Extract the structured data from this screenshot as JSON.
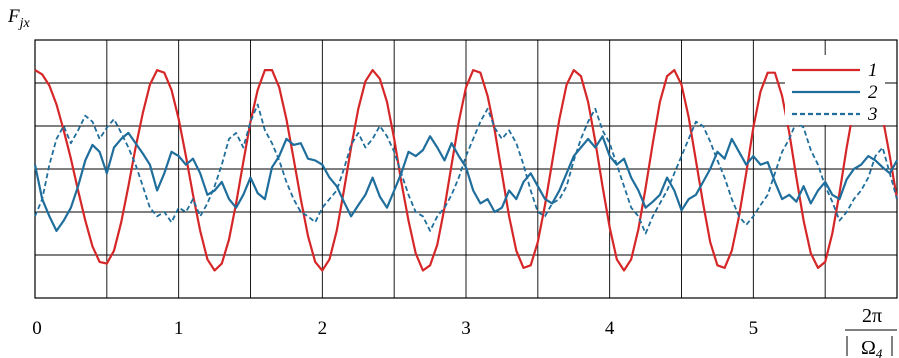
{
  "chart_data": {
    "type": "line",
    "title": "",
    "xlabel": "2π / |Ω_4|",
    "xlabel_parts": {
      "numerator": "2π",
      "denominator": "Ω",
      "denominator_subscript": "4"
    },
    "ylabel": "F",
    "ylabel_subscript": "jx",
    "xlim": [
      0,
      6
    ],
    "ylim": [
      -1.5,
      1.5
    ],
    "x_ticks": [
      "0",
      "1",
      "2",
      "3",
      "4",
      "5"
    ],
    "x_tick_values": [
      0,
      1,
      2,
      3,
      4,
      5
    ],
    "grid": true,
    "legend_position": "top-right",
    "series": [
      {
        "name": "1",
        "color": "#d62728",
        "dash": "solid",
        "x": [
          0,
          0.05,
          0.1,
          0.15,
          0.2,
          0.25,
          0.3,
          0.35,
          0.4,
          0.45,
          0.5,
          0.55,
          0.6,
          0.65,
          0.7,
          0.75,
          0.8,
          0.85,
          0.9,
          0.95,
          1.0,
          1.05,
          1.1,
          1.15,
          1.2,
          1.25,
          1.3,
          1.35,
          1.4,
          1.45,
          1.5,
          1.55,
          1.6,
          1.65,
          1.7,
          1.75,
          1.8,
          1.85,
          1.9,
          1.95,
          2.0,
          2.05,
          2.1,
          2.15,
          2.2,
          2.25,
          2.3,
          2.35,
          2.4,
          2.45,
          2.5,
          2.55,
          2.6,
          2.65,
          2.7,
          2.75,
          2.8,
          2.85,
          2.9,
          2.95,
          3.0,
          3.05,
          3.1,
          3.15,
          3.2,
          3.25,
          3.3,
          3.35,
          3.4,
          3.45,
          3.5,
          3.55,
          3.6,
          3.65,
          3.7,
          3.75,
          3.8,
          3.85,
          3.9,
          3.95,
          4.0,
          4.05,
          4.1,
          4.15,
          4.2,
          4.25,
          4.3,
          4.35,
          4.4,
          4.45,
          4.5,
          4.55,
          4.6,
          4.65,
          4.7,
          4.75,
          4.8,
          4.85,
          4.9,
          4.95,
          5.0,
          5.05,
          5.1,
          5.15,
          5.2,
          5.25,
          5.3,
          5.35,
          5.4,
          5.45,
          5.5,
          5.55,
          5.6,
          5.65,
          5.7,
          5.75,
          5.8,
          5.85,
          5.9,
          5.95,
          6.0
        ],
        "y": [
          1.15,
          1.1,
          0.97,
          0.75,
          0.45,
          0.12,
          -0.25,
          -0.6,
          -0.9,
          -1.08,
          -1.1,
          -0.95,
          -0.62,
          -0.2,
          0.25,
          0.65,
          0.98,
          1.15,
          1.12,
          0.92,
          0.58,
          0.15,
          -0.3,
          -0.72,
          -1.05,
          -1.18,
          -1.1,
          -0.82,
          -0.4,
          0.08,
          0.55,
          0.92,
          1.15,
          1.15,
          0.95,
          0.58,
          0.12,
          -0.35,
          -0.78,
          -1.08,
          -1.18,
          -1.05,
          -0.72,
          -0.25,
          0.25,
          0.7,
          1.02,
          1.15,
          1.05,
          0.78,
          0.35,
          -0.15,
          -0.6,
          -0.98,
          -1.18,
          -1.12,
          -0.88,
          -0.45,
          0.05,
          0.55,
          0.95,
          1.15,
          1.12,
          0.85,
          0.45,
          -0.05,
          -0.55,
          -0.95,
          -1.15,
          -1.12,
          -0.85,
          -0.42,
          0.08,
          0.58,
          0.98,
          1.15,
          1.08,
          0.78,
          0.32,
          -0.2,
          -0.68,
          -1.05,
          -1.18,
          -1.05,
          -0.7,
          -0.22,
          0.3,
          0.78,
          1.08,
          1.15,
          0.98,
          0.6,
          0.1,
          -0.4,
          -0.85,
          -1.12,
          -1.15,
          -0.95,
          -0.55,
          -0.05,
          0.48,
          0.9,
          1.12,
          1.12,
          0.85,
          0.42,
          -0.1,
          -0.6,
          -0.98,
          -1.15,
          -1.08,
          -0.75,
          -0.28,
          0.25,
          0.72,
          1.05,
          1.15,
          0.98,
          0.6,
          0.15,
          -0.35
        ]
      },
      {
        "name": "2",
        "color": "#1f6e9c",
        "dash": "solid",
        "x": [
          0,
          0.05,
          0.1,
          0.15,
          0.2,
          0.25,
          0.3,
          0.35,
          0.4,
          0.45,
          0.5,
          0.55,
          0.6,
          0.65,
          0.7,
          0.75,
          0.8,
          0.85,
          0.9,
          0.95,
          1.0,
          1.05,
          1.1,
          1.15,
          1.2,
          1.25,
          1.3,
          1.35,
          1.4,
          1.45,
          1.5,
          1.55,
          1.6,
          1.65,
          1.7,
          1.75,
          1.8,
          1.85,
          1.9,
          1.95,
          2.0,
          2.05,
          2.1,
          2.15,
          2.2,
          2.25,
          2.3,
          2.35,
          2.4,
          2.45,
          2.5,
          2.55,
          2.6,
          2.65,
          2.7,
          2.75,
          2.8,
          2.85,
          2.9,
          2.95,
          3.0,
          3.05,
          3.1,
          3.15,
          3.2,
          3.25,
          3.3,
          3.35,
          3.4,
          3.45,
          3.5,
          3.55,
          3.6,
          3.65,
          3.7,
          3.75,
          3.8,
          3.85,
          3.9,
          3.95,
          4.0,
          4.05,
          4.1,
          4.15,
          4.2,
          4.25,
          4.3,
          4.35,
          4.4,
          4.45,
          4.5,
          4.55,
          4.6,
          4.65,
          4.7,
          4.75,
          4.8,
          4.85,
          4.9,
          4.95,
          5.0,
          5.05,
          5.1,
          5.15,
          5.2,
          5.25,
          5.3,
          5.35,
          5.4,
          5.45,
          5.5,
          5.55,
          5.6,
          5.65,
          5.7,
          5.75,
          5.8,
          5.85,
          5.9,
          5.95,
          6.0
        ],
        "y": [
          0.05,
          -0.35,
          -0.55,
          -0.72,
          -0.6,
          -0.45,
          -0.2,
          0.1,
          0.28,
          0.2,
          -0.05,
          0.25,
          0.35,
          0.42,
          0.3,
          0.18,
          0.05,
          -0.25,
          -0.05,
          0.2,
          0.15,
          0.05,
          0.12,
          -0.05,
          -0.3,
          -0.25,
          -0.15,
          -0.35,
          -0.45,
          -0.3,
          -0.1,
          -0.28,
          -0.35,
          0.02,
          0.15,
          0.35,
          0.28,
          0.3,
          0.12,
          0.1,
          0.05,
          -0.1,
          -0.2,
          -0.38,
          -0.55,
          -0.42,
          -0.3,
          -0.1,
          -0.32,
          -0.45,
          -0.25,
          -0.05,
          0.2,
          0.15,
          0.22,
          0.38,
          0.25,
          0.1,
          0.3,
          0.15,
          0.02,
          -0.25,
          -0.4,
          -0.35,
          -0.5,
          -0.45,
          -0.25,
          -0.35,
          -0.15,
          -0.05,
          -0.2,
          -0.35,
          -0.4,
          -0.25,
          -0.05,
          0.15,
          0.25,
          0.35,
          0.25,
          0.38,
          0.15,
          0.05,
          0.12,
          -0.1,
          -0.25,
          -0.45,
          -0.38,
          -0.3,
          -0.1,
          -0.25,
          -0.48,
          -0.35,
          -0.3,
          -0.15,
          0.0,
          0.2,
          0.12,
          0.35,
          0.2,
          0.05,
          0.15,
          0.05,
          0.08,
          -0.15,
          -0.35,
          -0.3,
          -0.38,
          -0.2,
          -0.4,
          -0.25,
          -0.15,
          -0.3,
          -0.35,
          -0.12,
          0.0,
          0.05,
          0.15,
          0.1,
          0.02,
          -0.05,
          0.1
        ]
      },
      {
        "name": "3",
        "color": "#1f6e9c",
        "dash": "dashed",
        "x": [
          0,
          0.05,
          0.1,
          0.15,
          0.2,
          0.25,
          0.3,
          0.35,
          0.4,
          0.45,
          0.5,
          0.55,
          0.6,
          0.65,
          0.7,
          0.75,
          0.8,
          0.85,
          0.9,
          0.95,
          1.0,
          1.05,
          1.1,
          1.15,
          1.2,
          1.25,
          1.3,
          1.35,
          1.4,
          1.45,
          1.5,
          1.55,
          1.6,
          1.65,
          1.7,
          1.75,
          1.8,
          1.85,
          1.9,
          1.95,
          2.0,
          2.05,
          2.1,
          2.15,
          2.2,
          2.25,
          2.3,
          2.35,
          2.4,
          2.45,
          2.5,
          2.55,
          2.6,
          2.65,
          2.7,
          2.75,
          2.8,
          2.85,
          2.9,
          2.95,
          3.0,
          3.05,
          3.1,
          3.15,
          3.2,
          3.25,
          3.3,
          3.35,
          3.4,
          3.45,
          3.5,
          3.55,
          3.6,
          3.65,
          3.7,
          3.75,
          3.8,
          3.85,
          3.9,
          3.95,
          4.0,
          4.05,
          4.1,
          4.15,
          4.2,
          4.25,
          4.3,
          4.35,
          4.4,
          4.45,
          4.5,
          4.55,
          4.6,
          4.65,
          4.7,
          4.75,
          4.8,
          4.85,
          4.9,
          4.95,
          5.0,
          5.05,
          5.1,
          5.15,
          5.2,
          5.25,
          5.3,
          5.35,
          5.4,
          5.45,
          5.5,
          5.55,
          5.6,
          5.65,
          5.7,
          5.75,
          5.8,
          5.85,
          5.9,
          5.95,
          6.0
        ],
        "y": [
          -0.55,
          -0.35,
          0.05,
          0.35,
          0.5,
          0.3,
          0.45,
          0.62,
          0.55,
          0.35,
          0.48,
          0.58,
          0.42,
          0.25,
          0.05,
          -0.2,
          -0.45,
          -0.55,
          -0.5,
          -0.62,
          -0.45,
          -0.5,
          -0.35,
          -0.55,
          -0.4,
          -0.2,
          0.05,
          0.35,
          0.42,
          0.25,
          0.55,
          0.75,
          0.45,
          0.3,
          0.1,
          -0.15,
          -0.35,
          -0.5,
          -0.55,
          -0.62,
          -0.45,
          -0.35,
          -0.25,
          0.0,
          0.28,
          0.42,
          0.25,
          0.35,
          0.5,
          0.38,
          0.2,
          -0.05,
          -0.3,
          -0.5,
          -0.55,
          -0.72,
          -0.55,
          -0.45,
          -0.3,
          -0.1,
          0.15,
          0.35,
          0.55,
          0.7,
          0.48,
          0.35,
          0.45,
          0.3,
          0.05,
          -0.25,
          -0.5,
          -0.55,
          -0.4,
          -0.35,
          -0.2,
          0.1,
          0.35,
          0.55,
          0.7,
          0.45,
          0.3,
          0.05,
          -0.2,
          -0.45,
          -0.55,
          -0.75,
          -0.55,
          -0.4,
          -0.25,
          -0.05,
          0.15,
          0.35,
          0.55,
          0.5,
          0.32,
          0.1,
          -0.1,
          -0.35,
          -0.55,
          -0.65,
          -0.55,
          -0.42,
          -0.3,
          -0.05,
          0.2,
          0.35,
          0.55,
          0.48,
          0.22,
          0.05,
          -0.2,
          -0.38,
          -0.6,
          -0.5,
          -0.35,
          -0.25,
          -0.1,
          0.15,
          0.25,
          -0.05,
          -0.35
        ]
      }
    ]
  }
}
